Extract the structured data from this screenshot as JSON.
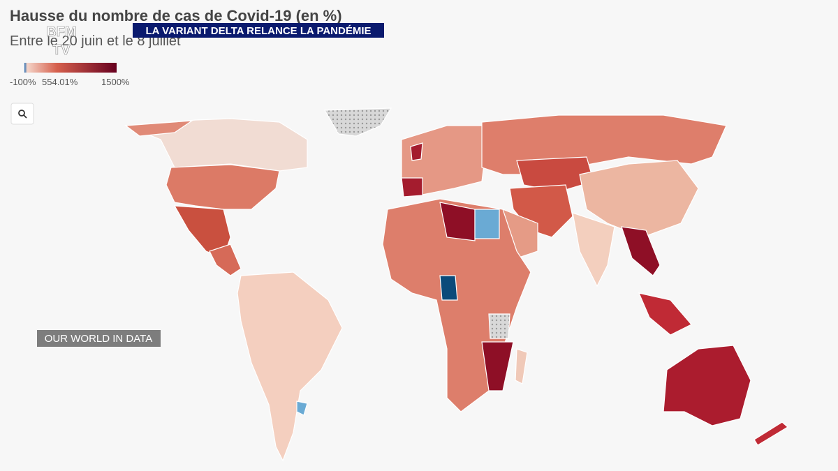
{
  "header": {
    "title": "Hausse du nombre de cas de Covid-19 (en %)",
    "subtitle": "Entre le 20 juin et le 8 juillet"
  },
  "legend": {
    "labels": [
      "-100%",
      "554.01%",
      "1500%"
    ]
  },
  "banner": "LA VARIANT DELTA RELANCE LA PANDÉMIE",
  "source_tag": "OUR WORLD IN DATA",
  "logo": {
    "top": "BFM",
    "bottom": "TV"
  }
}
